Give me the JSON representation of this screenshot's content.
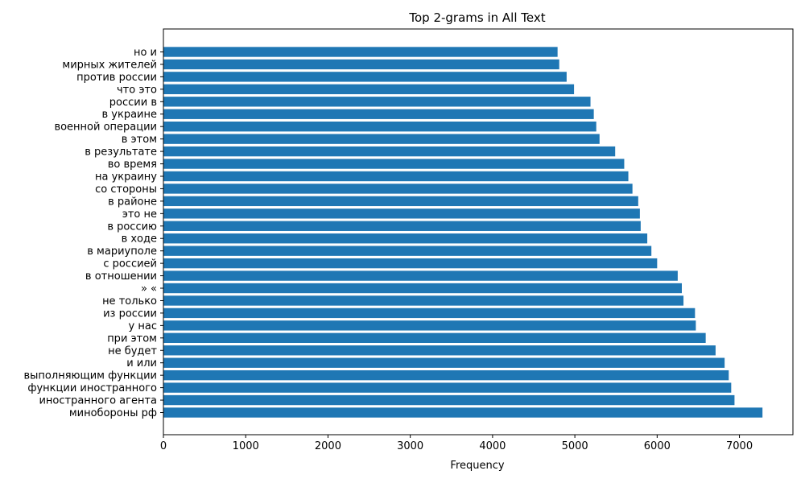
{
  "chart_data": {
    "type": "bar",
    "orientation": "horizontal",
    "title": "Top 2-grams in All Text",
    "xlabel": "Frequency",
    "ylabel": "",
    "xlim": [
      0,
      7650
    ],
    "xticks": [
      0,
      1000,
      2000,
      3000,
      4000,
      5000,
      6000,
      7000
    ],
    "grid": false,
    "bar_color": "#1f77b4",
    "categories": [
      "минобороны рф",
      "иностранного агента",
      "функции иностранного",
      "выполняющим функции",
      "и или",
      "не будет",
      "при этом",
      "у нас",
      "из россии",
      "не только",
      "» «",
      "в отношении",
      "с россией",
      "в мариуполе",
      "в ходе",
      "в россию",
      "это не",
      "в районе",
      "со стороны",
      "на украину",
      "во время",
      "в результате",
      "в этом",
      "военной операции",
      "в украине",
      "россии в",
      "что это",
      "против россии",
      "мирных жителей",
      "но и"
    ],
    "values": [
      7280,
      6940,
      6900,
      6870,
      6820,
      6710,
      6590,
      6470,
      6460,
      6320,
      6300,
      6250,
      6000,
      5930,
      5880,
      5800,
      5790,
      5770,
      5700,
      5650,
      5600,
      5490,
      5300,
      5260,
      5230,
      5190,
      4990,
      4900,
      4810,
      4790
    ]
  }
}
